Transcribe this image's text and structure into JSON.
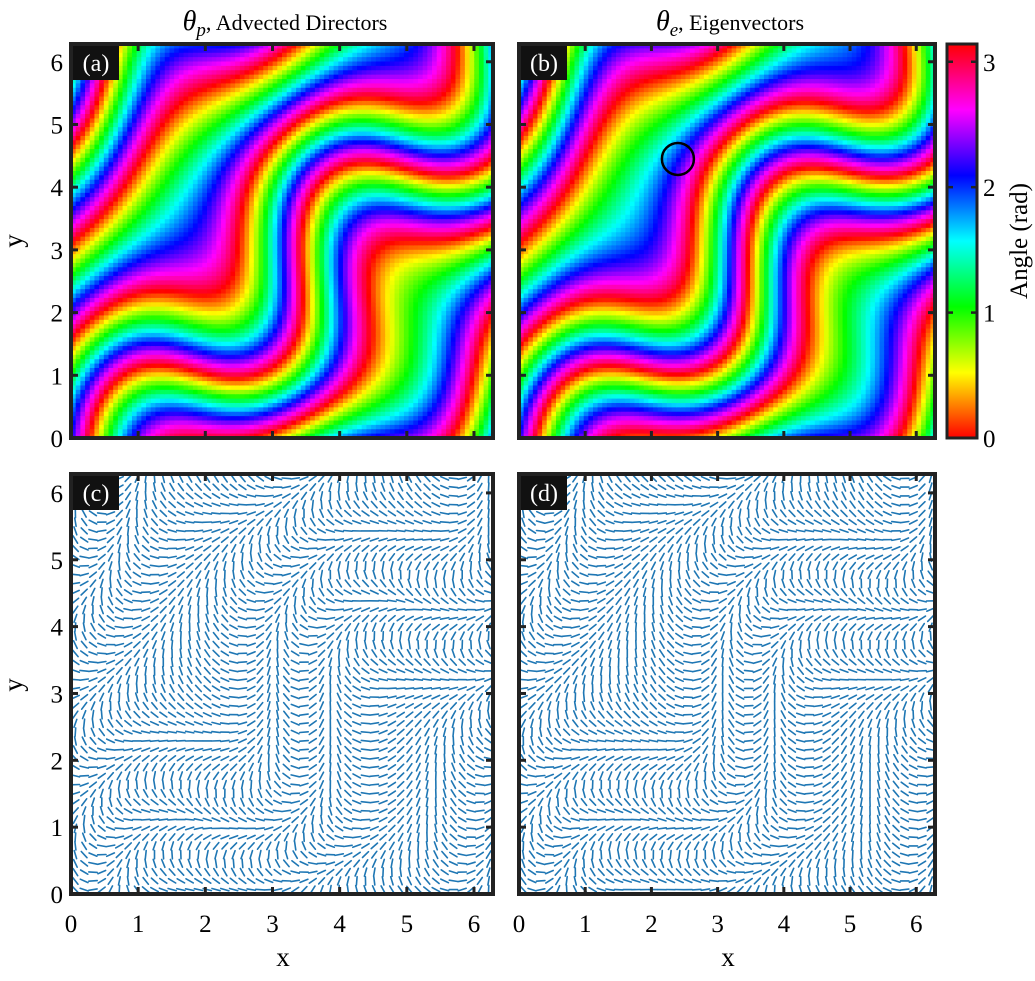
{
  "panels": [
    {
      "id": "a",
      "tag": "(a)",
      "kind": "angle-map",
      "title_symbol": "θ",
      "title_sub": "p",
      "title_text": ", Advected Directors"
    },
    {
      "id": "b",
      "tag": "(b)",
      "kind": "angle-map",
      "title_symbol": "θ",
      "title_sub": "e",
      "title_text": ", Eigenvectors",
      "annotation": "circle marking defect near (2.4, 4.45)"
    },
    {
      "id": "c",
      "tag": "(c)",
      "kind": "director-field"
    },
    {
      "id": "d",
      "tag": "(d)",
      "kind": "director-field"
    }
  ],
  "colorbar": {
    "label": "Angle (rad)",
    "ticks": [
      "0",
      "1",
      "2",
      "3"
    ],
    "range": [
      0,
      3.1416
    ],
    "colormap": "hsv"
  },
  "chart_data": {
    "type": "heatmap",
    "xlabel": "x",
    "ylabel": "y",
    "xlim": [
      0,
      6.2832
    ],
    "ylim": [
      0,
      6.2832
    ],
    "xticks": [
      "0",
      "1",
      "2",
      "3",
      "4",
      "5",
      "6"
    ],
    "yticks": [
      "0",
      "1",
      "2",
      "3",
      "4",
      "5",
      "6"
    ],
    "defect_marker": {
      "x": 2.4,
      "y": 4.45
    },
    "description": "Nematic director angle fields on periodic domain; angle in [0, π]"
  },
  "colors": {
    "quiver": "#1f77b4",
    "frame": "#222222",
    "tag_bg": "#111111"
  }
}
